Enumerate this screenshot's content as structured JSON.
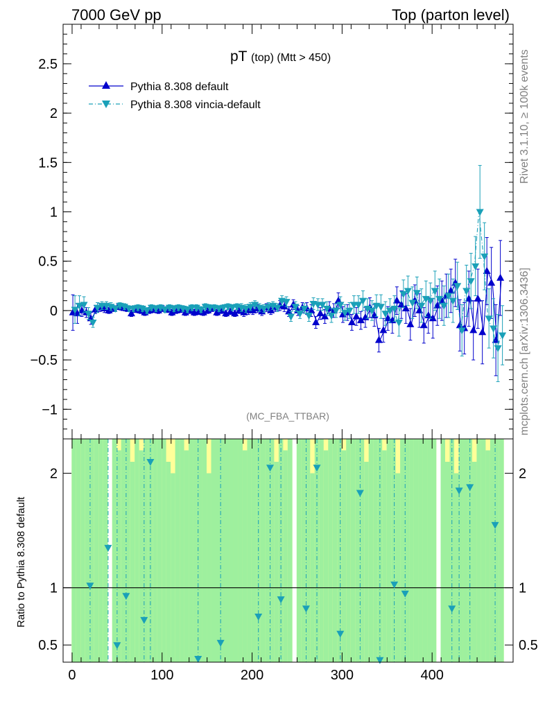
{
  "header": {
    "left": "7000 GeV pp",
    "right": "Top (parton level)"
  },
  "side_labels": {
    "rivet": "Rivet 3.1.10, ≥ 100k events",
    "mcplots": "mcplots.cern.ch [arXiv:1306.3436]"
  },
  "chart_data": [
    {
      "type": "line",
      "title_main": "pT",
      "title_sub": "(top) (Mtt > 450)",
      "watermark": "(MC_FBA_TTBAR)",
      "xlabel": "",
      "ylabel": "",
      "xlim": [
        -10,
        490
      ],
      "ylim": [
        -1.3,
        2.9
      ],
      "x_ticks": [
        0,
        100,
        200,
        300,
        400
      ],
      "y_ticks": [
        -1,
        -0.5,
        0,
        0.5,
        1,
        1.5,
        2,
        2.5
      ],
      "y_tick_labels": [
        "−1",
        "−0.5",
        "0",
        "0.5",
        "1",
        "1.5",
        "2",
        "2.5"
      ],
      "legend_position": "top-left",
      "series": [
        {
          "name": "Pythia 8.308 default",
          "color": "#0000cc",
          "marker": "triangle-up",
          "line": "solid",
          "x": [
            2,
            7,
            12,
            17,
            22,
            27,
            32,
            37,
            42,
            47,
            52,
            57,
            62,
            67,
            72,
            77,
            82,
            87,
            92,
            97,
            102,
            107,
            112,
            117,
            122,
            127,
            132,
            137,
            142,
            147,
            152,
            157,
            162,
            167,
            172,
            177,
            182,
            187,
            192,
            197,
            202,
            207,
            212,
            217,
            222,
            227,
            232,
            237,
            242,
            247,
            252,
            257,
            262,
            267,
            272,
            277,
            282,
            287,
            292,
            297,
            302,
            307,
            312,
            317,
            322,
            327,
            332,
            337,
            342,
            347,
            352,
            357,
            362,
            367,
            372,
            377,
            382,
            387,
            392,
            397,
            402,
            407,
            412,
            417,
            422,
            427,
            432,
            437,
            442,
            447,
            452,
            457,
            462,
            467,
            472,
            477
          ],
          "y": [
            -0.02,
            -0.03,
            0.0,
            -0.02,
            -0.08,
            0.01,
            0.03,
            0.02,
            0.0,
            0.02,
            0.04,
            0.03,
            0.02,
            -0.03,
            0.01,
            0.0,
            -0.02,
            0.0,
            0.01,
            0.0,
            0.02,
            0.01,
            -0.02,
            0.0,
            0.01,
            -0.02,
            0.0,
            -0.02,
            -0.01,
            -0.02,
            0.0,
            0.02,
            -0.02,
            0.0,
            -0.03,
            -0.01,
            -0.03,
            0.0,
            -0.02,
            0.0,
            0.0,
            0.02,
            -0.01,
            0.03,
            0.0,
            0.03,
            0.05,
            0.04,
            -0.01,
            0.06,
            0.0,
            0.03,
            0.02,
            0.0,
            -0.12,
            -0.03,
            -0.06,
            0.02,
            0.0,
            0.1,
            -0.04,
            -0.02,
            -0.12,
            -0.06,
            -0.1,
            -0.07,
            0.03,
            -0.05,
            -0.3,
            -0.2,
            -0.08,
            -0.1,
            0.1,
            0.06,
            0.02,
            -0.14,
            0.1,
            0.0,
            -0.15,
            -0.05,
            -0.08,
            0.05,
            0.1,
            0.15,
            0.2,
            0.28,
            -0.15,
            -0.18,
            0.12,
            -0.2,
            0.12,
            -0.22,
            0.4,
            0.28,
            -0.3,
            0.33
          ],
          "yerr": [
            0.18,
            0.1,
            0.06,
            0.05,
            0.06,
            0.04,
            0.04,
            0.04,
            0.03,
            0.03,
            0.03,
            0.03,
            0.03,
            0.03,
            0.03,
            0.03,
            0.03,
            0.03,
            0.03,
            0.03,
            0.03,
            0.03,
            0.03,
            0.03,
            0.03,
            0.03,
            0.03,
            0.03,
            0.03,
            0.03,
            0.03,
            0.03,
            0.03,
            0.03,
            0.03,
            0.03,
            0.03,
            0.03,
            0.04,
            0.04,
            0.04,
            0.04,
            0.04,
            0.04,
            0.04,
            0.04,
            0.05,
            0.05,
            0.05,
            0.05,
            0.05,
            0.05,
            0.06,
            0.06,
            0.06,
            0.06,
            0.07,
            0.07,
            0.07,
            0.08,
            0.08,
            0.08,
            0.08,
            0.09,
            0.09,
            0.1,
            0.1,
            0.11,
            0.12,
            0.12,
            0.12,
            0.13,
            0.14,
            0.14,
            0.15,
            0.16,
            0.16,
            0.17,
            0.18,
            0.18,
            0.2,
            0.2,
            0.2,
            0.22,
            0.22,
            0.24,
            0.26,
            0.26,
            0.28,
            0.3,
            0.3,
            0.32,
            0.34,
            0.36,
            0.36,
            0.38
          ]
        },
        {
          "name": "Pythia 8.308 vincia-default",
          "color": "#1aa0b8",
          "marker": "triangle-down",
          "line": "dash-dot",
          "x": [
            2,
            7,
            12,
            17,
            22,
            27,
            32,
            37,
            42,
            47,
            52,
            57,
            62,
            67,
            72,
            77,
            82,
            87,
            92,
            97,
            102,
            107,
            112,
            117,
            122,
            127,
            132,
            137,
            142,
            147,
            152,
            157,
            162,
            167,
            172,
            177,
            182,
            187,
            192,
            197,
            202,
            207,
            212,
            217,
            222,
            227,
            232,
            237,
            242,
            247,
            252,
            257,
            262,
            267,
            272,
            277,
            282,
            287,
            292,
            297,
            302,
            307,
            312,
            317,
            322,
            327,
            332,
            337,
            342,
            347,
            352,
            357,
            362,
            367,
            372,
            377,
            382,
            387,
            392,
            397,
            402,
            407,
            412,
            417,
            422,
            427,
            432,
            437,
            442,
            447,
            452,
            457,
            462,
            467,
            472,
            477
          ],
          "y": [
            0.01,
            0.05,
            0.06,
            -0.03,
            -0.12,
            0.03,
            0.05,
            0.05,
            0.04,
            0.02,
            0.05,
            0.04,
            0.02,
            0.02,
            0.03,
            0.02,
            0.0,
            0.03,
            0.02,
            0.03,
            0.01,
            0.03,
            0.02,
            0.03,
            0.02,
            0.01,
            0.03,
            0.03,
            0.01,
            0.04,
            0.03,
            0.03,
            0.02,
            0.03,
            0.04,
            0.03,
            0.04,
            0.03,
            0.02,
            0.04,
            0.06,
            0.03,
            0.02,
            0.04,
            0.05,
            0.03,
            0.1,
            0.09,
            -0.06,
            0.04,
            -0.03,
            0.02,
            -0.05,
            0.07,
            0.06,
            0.06,
            0.02,
            -0.05,
            0.0,
            0.06,
            -0.02,
            0.0,
            0.06,
            0.06,
            0.1,
            0.02,
            0.0,
            0.05,
            0.04,
            -0.03,
            0.0,
            0.02,
            -0.12,
            0.17,
            0.2,
            0.08,
            0.18,
            0.05,
            0.12,
            0.1,
            0.2,
            0.12,
            0.05,
            0.15,
            0.1,
            0.25,
            -0.2,
            0.2,
            0.3,
            0.45,
            1.0,
            0.55,
            -0.08,
            -0.18,
            -0.38,
            -0.25
          ],
          "yerr": [
            0.14,
            0.1,
            0.08,
            0.06,
            0.05,
            0.05,
            0.04,
            0.04,
            0.04,
            0.03,
            0.03,
            0.03,
            0.03,
            0.03,
            0.03,
            0.03,
            0.03,
            0.03,
            0.03,
            0.03,
            0.03,
            0.03,
            0.03,
            0.03,
            0.03,
            0.03,
            0.03,
            0.03,
            0.03,
            0.03,
            0.03,
            0.03,
            0.03,
            0.03,
            0.03,
            0.03,
            0.03,
            0.04,
            0.04,
            0.04,
            0.04,
            0.04,
            0.04,
            0.04,
            0.04,
            0.04,
            0.05,
            0.05,
            0.05,
            0.05,
            0.05,
            0.05,
            0.06,
            0.06,
            0.06,
            0.06,
            0.07,
            0.07,
            0.07,
            0.08,
            0.08,
            0.08,
            0.09,
            0.09,
            0.1,
            0.1,
            0.1,
            0.11,
            0.12,
            0.12,
            0.12,
            0.13,
            0.14,
            0.14,
            0.15,
            0.16,
            0.16,
            0.17,
            0.18,
            0.18,
            0.2,
            0.2,
            0.2,
            0.22,
            0.22,
            0.24,
            0.26,
            0.26,
            0.28,
            0.3,
            0.47,
            0.34,
            0.3,
            0.3,
            0.34,
            0.3
          ]
        }
      ]
    },
    {
      "type": "line",
      "ylabel": "Ratio to Pythia 8.308 default",
      "xlim": [
        -10,
        490
      ],
      "ylim": [
        0.35,
        2.3
      ],
      "x_ticks": [
        0,
        100,
        200,
        300,
        400
      ],
      "x_tick_labels": [
        "0",
        "100",
        "200",
        "300",
        "400"
      ],
      "y_ticks": [
        0.5,
        1,
        2
      ],
      "y_tick_labels": [
        "0.5",
        "1",
        "2"
      ],
      "reference_line": 1,
      "band_colors": {
        "inner": "#9ef09e",
        "outer": "#ffff99"
      },
      "bands": {
        "x": [
          2,
          7,
          12,
          17,
          22,
          27,
          32,
          37,
          42,
          47,
          52,
          57,
          62,
          67,
          72,
          77,
          82,
          87,
          92,
          97,
          102,
          107,
          112,
          117,
          122,
          127,
          132,
          137,
          142,
          147,
          152,
          157,
          162,
          167,
          172,
          177,
          182,
          187,
          192,
          197,
          202,
          207,
          212,
          217,
          222,
          227,
          232,
          237,
          242,
          247,
          252,
          257,
          262,
          267,
          272,
          277,
          282,
          287,
          292,
          297,
          302,
          307,
          312,
          317,
          322,
          327,
          332,
          337,
          342,
          347,
          352,
          357,
          362,
          367,
          372,
          377,
          382,
          387,
          392,
          397,
          402,
          407,
          412,
          417,
          422,
          427,
          432,
          437,
          442,
          447,
          452,
          457,
          462,
          467,
          472,
          477
        ],
        "inner_top": [
          2.3,
          2.3,
          2.3,
          2.3,
          2.3,
          2.3,
          2.3,
          2.3,
          0.0,
          2.3,
          2.2,
          2.3,
          2.3,
          2.1,
          2.3,
          2.2,
          2.3,
          2.3,
          2.3,
          2.3,
          2.3,
          2.1,
          2.0,
          2.3,
          2.3,
          2.2,
          2.3,
          2.3,
          2.3,
          2.3,
          2.0,
          2.3,
          2.3,
          2.3,
          2.3,
          2.3,
          2.3,
          2.3,
          2.2,
          2.3,
          2.3,
          2.3,
          2.3,
          2.3,
          2.3,
          2.1,
          2.3,
          2.2,
          2.3,
          0.0,
          2.3,
          2.3,
          2.3,
          2.0,
          2.3,
          2.3,
          2.2,
          2.3,
          2.3,
          2.3,
          2.2,
          2.3,
          2.3,
          2.3,
          2.3,
          2.1,
          2.3,
          2.3,
          2.3,
          2.2,
          2.3,
          2.3,
          2.0,
          2.3,
          2.3,
          2.3,
          2.3,
          2.3,
          2.3,
          2.3,
          2.3,
          0.0,
          2.3,
          2.1,
          2.3,
          2.0,
          2.3,
          2.3,
          2.3,
          2.1,
          2.3,
          2.3,
          2.2,
          2.3,
          2.3,
          2.3
        ],
        "outer_top": [
          2.3,
          2.3,
          2.3,
          2.3,
          2.3,
          2.3,
          2.3,
          2.3,
          0.0,
          2.3,
          2.3,
          2.3,
          2.3,
          2.3,
          2.3,
          2.3,
          2.3,
          2.3,
          2.3,
          2.3,
          2.3,
          2.3,
          2.3,
          2.3,
          2.3,
          2.3,
          2.3,
          2.3,
          2.3,
          2.3,
          2.3,
          2.3,
          2.3,
          2.3,
          2.3,
          2.3,
          2.3,
          2.3,
          2.3,
          2.3,
          2.3,
          2.3,
          2.3,
          2.3,
          2.3,
          2.3,
          2.3,
          2.3,
          2.3,
          0.0,
          2.3,
          2.3,
          2.3,
          2.3,
          2.3,
          2.3,
          2.3,
          2.3,
          2.3,
          2.3,
          2.3,
          2.3,
          2.3,
          2.3,
          2.3,
          2.3,
          2.3,
          2.3,
          2.3,
          2.3,
          2.3,
          2.3,
          2.3,
          2.3,
          2.3,
          2.3,
          2.3,
          2.3,
          2.3,
          2.3,
          2.3,
          0.0,
          2.3,
          2.3,
          2.3,
          2.3,
          2.3,
          2.3,
          2.3,
          2.3,
          2.3,
          2.3,
          2.3,
          2.3,
          2.3,
          2.3
        ]
      },
      "series": [
        {
          "name": "Pythia 8.308 vincia-default",
          "color": "#1aa0b8",
          "marker": "triangle-down",
          "line": "dash-dot",
          "x": [
            20,
            40,
            50,
            60,
            80,
            87,
            140,
            165,
            207,
            220,
            232,
            260,
            272,
            298,
            320,
            342,
            358,
            370,
            422,
            430,
            442,
            470
          ],
          "y": [
            1.02,
            1.35,
            0.5,
            0.93,
            0.72,
            2.1,
            0.38,
            0.52,
            0.75,
            2.05,
            0.9,
            0.82,
            2.05,
            0.6,
            1.83,
            0.37,
            1.03,
            0.95,
            0.82,
            1.85,
            1.88,
            1.55
          ]
        }
      ]
    }
  ]
}
